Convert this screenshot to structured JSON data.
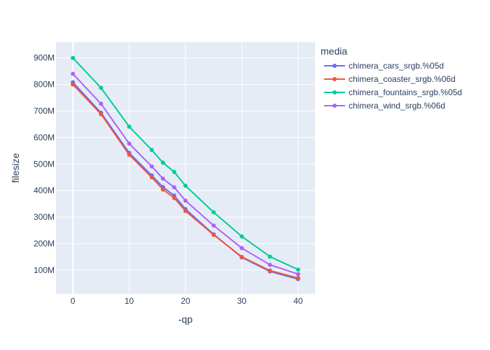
{
  "chart_data": {
    "type": "line",
    "xlabel": "-qp",
    "ylabel": "filesize",
    "xlim": [
      -3,
      43
    ],
    "ylim": [
      10000000,
      960000000
    ],
    "xticks": [
      0,
      10,
      20,
      30,
      40
    ],
    "xtick_labels": [
      "0",
      "10",
      "20",
      "30",
      "40"
    ],
    "yticks": [
      100000000,
      200000000,
      300000000,
      400000000,
      500000000,
      600000000,
      700000000,
      800000000,
      900000000
    ],
    "ytick_labels": [
      "100M",
      "200M",
      "300M",
      "400M",
      "500M",
      "600M",
      "700M",
      "800M",
      "900M"
    ],
    "grid": true,
    "legend": {
      "title": "media",
      "placement": "right"
    },
    "x": [
      0,
      5,
      10,
      14,
      16,
      18,
      20,
      25,
      30,
      35,
      40
    ],
    "series": [
      {
        "name": "chimera_cars_srgb.%05d",
        "color": "#636efa",
        "values": [
          808000000,
          693000000,
          542000000,
          457000000,
          413000000,
          381000000,
          330000000,
          235000000,
          148000000,
          95000000,
          66000000
        ]
      },
      {
        "name": "chimera_coaster_srgb.%06d",
        "color": "#ef553b",
        "values": [
          800000000,
          688000000,
          535000000,
          450000000,
          404000000,
          372000000,
          323000000,
          233000000,
          150000000,
          98000000,
          70000000
        ]
      },
      {
        "name": "chimera_fountains_srgb.%05d",
        "color": "#00cc96",
        "values": [
          900000000,
          787000000,
          641000000,
          553000000,
          505000000,
          470000000,
          418000000,
          318000000,
          227000000,
          151000000,
          102000000
        ]
      },
      {
        "name": "chimera_wind_srgb.%06d",
        "color": "#ab63fa",
        "values": [
          840000000,
          727000000,
          577000000,
          491000000,
          445000000,
          412000000,
          362000000,
          268000000,
          183000000,
          120000000,
          85000000
        ]
      }
    ]
  }
}
